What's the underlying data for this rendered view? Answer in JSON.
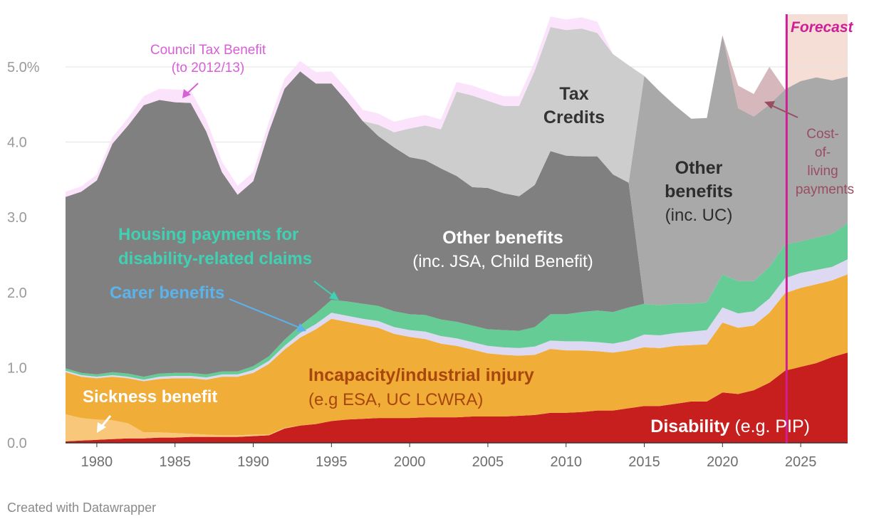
{
  "footer": "Created with Datawrapper",
  "colors": {
    "disability": "#c71e1e",
    "sickness": "#f8c77a",
    "incapacity": "#f0ad38",
    "carer": "#ddd9f2",
    "housing": "#66cc95",
    "other_pre": "#808080",
    "other_uc": "#a9a9a9",
    "tax_credits": "#cdcdcd",
    "ctb": "#fbe4fb",
    "cost_of_living": "#d6b8bc",
    "forecast_bg": "#f5ded5",
    "forecast_line": "#cf1e96"
  },
  "chart_data": {
    "type": "area",
    "stacked": true,
    "title": "",
    "xlabel": "",
    "ylabel": "",
    "xlim": [
      1978,
      2028
    ],
    "ylim": [
      0,
      5.7
    ],
    "y_ticks": [
      {
        "value": 0,
        "label": "0.0"
      },
      {
        "value": 1,
        "label": "1.0"
      },
      {
        "value": 2,
        "label": "2.0"
      },
      {
        "value": 3,
        "label": "3.0"
      },
      {
        "value": 4,
        "label": "4.0"
      },
      {
        "value": 5,
        "label": "5.0%"
      }
    ],
    "x_ticks": [
      1980,
      1985,
      1990,
      1995,
      2000,
      2005,
      2010,
      2015,
      2020,
      2025
    ],
    "forecast": {
      "start": 2024.1,
      "label": "Forecast"
    },
    "x": [
      1978,
      1979,
      1980,
      1981,
      1982,
      1983,
      1984,
      1985,
      1986,
      1987,
      1988,
      1989,
      1990,
      1991,
      1992,
      1993,
      1994,
      1995,
      1996,
      1997,
      1998,
      1999,
      2000,
      2001,
      2002,
      2003,
      2004,
      2005,
      2006,
      2007,
      2008,
      2009,
      2010,
      2011,
      2012,
      2013,
      2014,
      2015,
      2016,
      2017,
      2018,
      2019,
      2020,
      2021,
      2022,
      2023,
      2024,
      2025,
      2026,
      2027,
      2028
    ],
    "series": [
      {
        "key": "disability",
        "name": "Disability (e.g. PIP)",
        "values": [
          0.02,
          0.03,
          0.04,
          0.05,
          0.06,
          0.06,
          0.07,
          0.07,
          0.08,
          0.08,
          0.08,
          0.08,
          0.09,
          0.1,
          0.19,
          0.23,
          0.25,
          0.29,
          0.31,
          0.32,
          0.33,
          0.33,
          0.33,
          0.34,
          0.34,
          0.34,
          0.35,
          0.35,
          0.35,
          0.36,
          0.37,
          0.4,
          0.4,
          0.41,
          0.43,
          0.43,
          0.46,
          0.49,
          0.49,
          0.52,
          0.55,
          0.55,
          0.67,
          0.65,
          0.7,
          0.8,
          0.96,
          1.01,
          1.06,
          1.14,
          1.2
        ]
      },
      {
        "key": "sickness",
        "name": "Sickness benefit",
        "values": [
          0.36,
          0.3,
          0.27,
          0.25,
          0.2,
          0.08,
          0.07,
          0.06,
          0.04,
          0.03,
          0.02,
          0.02,
          0.02,
          0.01,
          0.01,
          0,
          0,
          0,
          0,
          0,
          0,
          0,
          0,
          0,
          0,
          0,
          0,
          0,
          0,
          0,
          0,
          0,
          0,
          0,
          0,
          0,
          0,
          0,
          0,
          0,
          0,
          0,
          0,
          0,
          0,
          0,
          0,
          0,
          0,
          0,
          0
        ]
      },
      {
        "key": "incapacity",
        "name": "Incapacity/industrial injury (e.g ESA, UC LCWRA)",
        "values": [
          0.56,
          0.55,
          0.55,
          0.58,
          0.6,
          0.68,
          0.71,
          0.73,
          0.74,
          0.73,
          0.78,
          0.78,
          0.82,
          0.94,
          1.04,
          1.17,
          1.26,
          1.36,
          1.3,
          1.25,
          1.2,
          1.12,
          1.08,
          1.04,
          0.98,
          0.95,
          0.89,
          0.84,
          0.82,
          0.8,
          0.8,
          0.85,
          0.83,
          0.82,
          0.79,
          0.77,
          0.77,
          0.78,
          0.77,
          0.77,
          0.75,
          0.76,
          0.93,
          0.88,
          0.86,
          0.93,
          1.03,
          1.05,
          1.05,
          1.02,
          1.04
        ]
      },
      {
        "key": "carer",
        "name": "Carer benefits",
        "values": [
          0.02,
          0.02,
          0.02,
          0.02,
          0.02,
          0.02,
          0.03,
          0.03,
          0.03,
          0.03,
          0.03,
          0.03,
          0.04,
          0.04,
          0.05,
          0.06,
          0.07,
          0.08,
          0.08,
          0.08,
          0.09,
          0.09,
          0.09,
          0.1,
          0.1,
          0.1,
          0.1,
          0.1,
          0.1,
          0.1,
          0.11,
          0.11,
          0.12,
          0.12,
          0.12,
          0.12,
          0.13,
          0.17,
          0.17,
          0.17,
          0.18,
          0.19,
          0.2,
          0.19,
          0.19,
          0.19,
          0.2,
          0.2,
          0.19,
          0.18,
          0.2
        ]
      },
      {
        "key": "housing",
        "name": "Housing payments for disability-related claims",
        "values": [
          0.03,
          0.03,
          0.03,
          0.04,
          0.04,
          0.04,
          0.04,
          0.04,
          0.04,
          0.04,
          0.04,
          0.04,
          0.05,
          0.06,
          0.08,
          0.1,
          0.14,
          0.17,
          0.19,
          0.2,
          0.2,
          0.21,
          0.21,
          0.22,
          0.22,
          0.22,
          0.22,
          0.22,
          0.23,
          0.23,
          0.26,
          0.35,
          0.36,
          0.39,
          0.42,
          0.42,
          0.44,
          0.41,
          0.4,
          0.39,
          0.37,
          0.37,
          0.44,
          0.43,
          0.4,
          0.42,
          0.45,
          0.42,
          0.43,
          0.44,
          0.48
        ]
      },
      {
        "key": "other_pre",
        "name": "Other benefits (inc. JSA, Child Benefit)",
        "values": [
          2.28,
          2.41,
          2.58,
          3.04,
          3.3,
          3.61,
          3.64,
          3.6,
          3.59,
          3.23,
          2.65,
          2.35,
          2.46,
          2.99,
          3.34,
          3.38,
          3.06,
          2.88,
          2.66,
          2.43,
          2.26,
          2.18,
          2.09,
          2.06,
          2.01,
          1.94,
          1.84,
          1.88,
          1.82,
          1.79,
          1.89,
          2.17,
          2.11,
          2.07,
          2.05,
          1.83,
          1.66,
          0,
          0,
          0,
          0,
          0,
          0,
          0,
          0,
          0,
          0,
          0,
          0,
          0,
          0
        ]
      },
      {
        "key": "other_uc",
        "name": "Other benefits (inc. UC)",
        "values": [
          0,
          0,
          0,
          0,
          0,
          0,
          0,
          0,
          0,
          0,
          0,
          0,
          0,
          0,
          0,
          0,
          0,
          0,
          0,
          0,
          0,
          0,
          0,
          0,
          0,
          0,
          0,
          0,
          0,
          0,
          0,
          0,
          0,
          0,
          0,
          0,
          0,
          3.03,
          2.84,
          2.63,
          2.46,
          2.45,
          3.18,
          2.3,
          2.19,
          2.16,
          2.06,
          2.13,
          2.13,
          2.04,
          1.95
        ]
      },
      {
        "key": "tax_credits",
        "name": "Tax Credits",
        "values": [
          0,
          0,
          0,
          0,
          0,
          0,
          0,
          0,
          0,
          0,
          0,
          0,
          0,
          0,
          0,
          0,
          0,
          0,
          0,
          0,
          0.15,
          0.2,
          0.38,
          0.46,
          0.52,
          1.12,
          1.22,
          1.16,
          1.16,
          1.2,
          1.52,
          1.65,
          1.67,
          1.7,
          1.64,
          1.6,
          1.56,
          0,
          0,
          0,
          0,
          0,
          0,
          0,
          0,
          0,
          0,
          0,
          0,
          0,
          0
        ]
      },
      {
        "key": "ctb",
        "name": "Council Tax Benefit (to 2012/13)",
        "values": [
          0.07,
          0.07,
          0.08,
          0.09,
          0.1,
          0.12,
          0.15,
          0.17,
          0.17,
          0.16,
          0.14,
          0.12,
          0.12,
          0.13,
          0.13,
          0.14,
          0.15,
          0.16,
          0.16,
          0.15,
          0.15,
          0.14,
          0.14,
          0.14,
          0.13,
          0.13,
          0.13,
          0.13,
          0.13,
          0.13,
          0.12,
          0.14,
          0.14,
          0.15,
          0.15,
          0,
          0,
          0,
          0,
          0,
          0,
          0,
          0,
          0,
          0,
          0,
          0,
          0,
          0,
          0,
          0
        ]
      },
      {
        "key": "cost_of_living",
        "name": "Cost-of-living payments",
        "values": [
          0,
          0,
          0,
          0,
          0,
          0,
          0,
          0,
          0,
          0,
          0,
          0,
          0,
          0,
          0,
          0,
          0,
          0,
          0,
          0,
          0,
          0,
          0,
          0,
          0,
          0,
          0,
          0,
          0,
          0,
          0,
          0,
          0,
          0,
          0,
          0,
          0,
          0,
          0,
          0,
          0,
          0,
          0,
          0.3,
          0.3,
          0.5,
          0,
          0,
          0,
          0,
          0
        ]
      }
    ],
    "annotations": {
      "ctb_title": "Council Tax Benefit",
      "ctb_sub": "(to 2012/13)",
      "tax_credits_1": "Tax",
      "tax_credits_2": "Credits",
      "other_pre_title": "Other benefits",
      "other_pre_sub": "(inc. JSA, Child Benefit)",
      "other_uc_1": "Other",
      "other_uc_2": "benefits",
      "other_uc_3": "(inc. UC)",
      "housing_1": "Housing payments for",
      "housing_2": "disability-related claims",
      "carer": "Carer benefits",
      "incapacity_title": "Incapacity/industrial injury",
      "incapacity_sub": "(e.g ESA, UC LCWRA)",
      "sickness": "Sickness benefit",
      "disability_title": "Disability",
      "disability_sub": "(e.g. PIP)",
      "col_1": "Cost-",
      "col_2": "of-",
      "col_3": "living",
      "col_4": "payments"
    }
  }
}
